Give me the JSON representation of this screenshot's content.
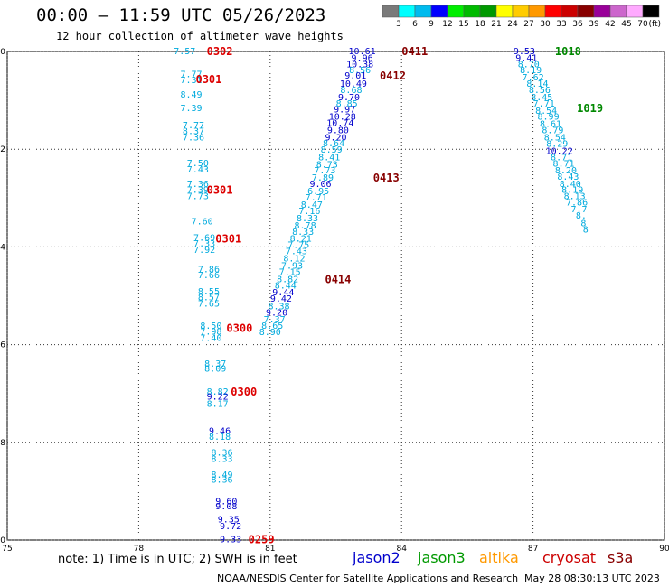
{
  "title": "00:00 – 11:59 UTC 05/26/2023",
  "subtitle": "12 hour collection of altimeter wave heights",
  "colorbar": {
    "unit": "(ft)",
    "ticks": [
      "3",
      "6",
      "9",
      "12",
      "15",
      "18",
      "21",
      "24",
      "27",
      "30",
      "33",
      "36",
      "39",
      "42",
      "45",
      "70"
    ],
    "colors": [
      "#7a7a7a",
      "#00ffff",
      "#00bbee",
      "#0000ff",
      "#00ee00",
      "#00bb00",
      "#009900",
      "#ffff00",
      "#ffcc00",
      "#ff9900",
      "#ff0000",
      "#cc0000",
      "#880000",
      "#990099",
      "#cc66cc",
      "#ffaaff",
      "#000000"
    ]
  },
  "axes": {
    "lon_labels": [
      "75",
      "78",
      "81",
      "84",
      "87",
      "90"
    ],
    "lat_labels": [
      "-20",
      "-22",
      "-24",
      "-26",
      "-28",
      "-30"
    ]
  },
  "chart_data": {
    "type": "map",
    "lon_range": [
      75,
      90
    ],
    "lat_range": [
      -30,
      -20
    ],
    "grid": true,
    "tracks": [
      {
        "satellite": "cryosat",
        "points": [
          {
            "lon": 79.05,
            "lat": -19.98,
            "text": "7.57",
            "color": "#00aadd"
          },
          {
            "lon": 79.2,
            "lat": -20.45,
            "text": "7.77",
            "color": "#00aadd"
          },
          {
            "lon": 79.2,
            "lat": -20.57,
            "text": "7.31",
            "color": "#00aadd"
          },
          {
            "lon": 79.2,
            "lat": -20.87,
            "text": "8.49",
            "color": "#00aadd"
          },
          {
            "lon": 79.2,
            "lat": -21.15,
            "text": "7.39",
            "color": "#00aadd"
          },
          {
            "lon": 79.25,
            "lat": -21.5,
            "text": "7.77",
            "color": "#00aadd"
          },
          {
            "lon": 79.25,
            "lat": -21.62,
            "text": "8.37",
            "color": "#00aadd"
          },
          {
            "lon": 79.25,
            "lat": -21.75,
            "text": "7.36",
            "color": "#00aadd"
          },
          {
            "lon": 79.35,
            "lat": -22.27,
            "text": "7.50",
            "color": "#00aadd"
          },
          {
            "lon": 79.35,
            "lat": -22.4,
            "text": "7.43",
            "color": "#00aadd"
          },
          {
            "lon": 79.35,
            "lat": -22.7,
            "text": "7.36",
            "color": "#00aadd"
          },
          {
            "lon": 79.35,
            "lat": -22.82,
            "text": "7.39",
            "color": "#00aadd"
          },
          {
            "lon": 79.35,
            "lat": -22.95,
            "text": "7.73",
            "color": "#00aadd"
          },
          {
            "lon": 79.45,
            "lat": -23.47,
            "text": "7.60",
            "color": "#00aadd"
          },
          {
            "lon": 79.5,
            "lat": -23.8,
            "text": "7.69",
            "color": "#00aadd"
          },
          {
            "lon": 79.5,
            "lat": -23.92,
            "text": "7.33",
            "color": "#00aadd"
          },
          {
            "lon": 79.5,
            "lat": -24.05,
            "text": "7.92",
            "color": "#00aadd"
          },
          {
            "lon": 79.6,
            "lat": -24.45,
            "text": "7.86",
            "color": "#00aadd"
          },
          {
            "lon": 79.6,
            "lat": -24.57,
            "text": "7.66",
            "color": "#00aadd"
          },
          {
            "lon": 79.6,
            "lat": -24.9,
            "text": "8.55",
            "color": "#00aadd"
          },
          {
            "lon": 79.6,
            "lat": -25.02,
            "text": "8.57",
            "color": "#00aadd"
          },
          {
            "lon": 79.6,
            "lat": -25.15,
            "text": "7.65",
            "color": "#00aadd"
          },
          {
            "lon": 79.65,
            "lat": -25.6,
            "text": "8.50",
            "color": "#00aadd"
          },
          {
            "lon": 79.65,
            "lat": -25.72,
            "text": "7.98",
            "color": "#00aadd"
          },
          {
            "lon": 79.65,
            "lat": -25.85,
            "text": "7.40",
            "color": "#00aadd"
          },
          {
            "lon": 79.75,
            "lat": -26.38,
            "text": "8.37",
            "color": "#00aadd"
          },
          {
            "lon": 79.75,
            "lat": -26.48,
            "text": "8.09",
            "color": "#00aadd"
          },
          {
            "lon": 79.8,
            "lat": -26.95,
            "text": "8.82",
            "color": "#00aadd"
          },
          {
            "lon": 79.8,
            "lat": -27.05,
            "text": "9.22",
            "color": "#0000cc"
          },
          {
            "lon": 79.8,
            "lat": -27.2,
            "text": "8.17",
            "color": "#00aadd"
          },
          {
            "lon": 79.85,
            "lat": -27.75,
            "text": "9.46",
            "color": "#0000cc"
          },
          {
            "lon": 79.85,
            "lat": -27.87,
            "text": "8.18",
            "color": "#00aadd"
          },
          {
            "lon": 79.9,
            "lat": -28.2,
            "text": "8.36",
            "color": "#00aadd"
          },
          {
            "lon": 79.9,
            "lat": -28.33,
            "text": "8.33",
            "color": "#00aadd"
          },
          {
            "lon": 79.9,
            "lat": -28.65,
            "text": "8.49",
            "color": "#00aadd"
          },
          {
            "lon": 79.9,
            "lat": -28.75,
            "text": "8.36",
            "color": "#00aadd"
          },
          {
            "lon": 80.0,
            "lat": -29.2,
            "text": "9.60",
            "color": "#0000cc"
          },
          {
            "lon": 80.0,
            "lat": -29.3,
            "text": "9.08",
            "color": "#0000cc"
          },
          {
            "lon": 80.05,
            "lat": -29.57,
            "text": "9.35",
            "color": "#0000cc"
          },
          {
            "lon": 80.1,
            "lat": -29.7,
            "text": "9.72",
            "color": "#0000cc"
          },
          {
            "lon": 80.1,
            "lat": -29.97,
            "text": "9.33",
            "color": "#0000cc"
          }
        ],
        "pass_labels": [
          {
            "lon": 79.85,
            "lat": -19.98,
            "text": "0302"
          },
          {
            "lon": 79.6,
            "lat": -20.55,
            "text": "0301"
          },
          {
            "lon": 79.85,
            "lat": -22.82,
            "text": "0301"
          },
          {
            "lon": 80.05,
            "lat": -23.82,
            "text": "0301"
          },
          {
            "lon": 80.3,
            "lat": -25.65,
            "text": "0300"
          },
          {
            "lon": 80.4,
            "lat": -26.95,
            "text": "0300"
          },
          {
            "lon": 80.8,
            "lat": -29.97,
            "text": "0259"
          }
        ]
      },
      {
        "satellite": "altika",
        "points": [
          {
            "lon": 83.1,
            "lat": -19.98,
            "text": "10.61",
            "color": "#0000cc"
          },
          {
            "lon": 83.1,
            "lat": -20.12,
            "text": "9.96",
            "color": "#0000cc"
          },
          {
            "lon": 83.05,
            "lat": -20.25,
            "text": "10.38",
            "color": "#0000cc"
          },
          {
            "lon": 83.05,
            "lat": -20.37,
            "text": "8.56",
            "color": "#00aadd"
          },
          {
            "lon": 82.95,
            "lat": -20.48,
            "text": "9.01",
            "color": "#0000cc"
          },
          {
            "lon": 82.9,
            "lat": -20.65,
            "text": "10.49",
            "color": "#0000cc"
          },
          {
            "lon": 82.85,
            "lat": -20.78,
            "text": "8.68",
            "color": "#00aadd"
          },
          {
            "lon": 82.8,
            "lat": -20.92,
            "text": "9.70",
            "color": "#0000cc"
          },
          {
            "lon": 82.75,
            "lat": -21.05,
            "text": "8.85",
            "color": "#00aadd"
          },
          {
            "lon": 82.7,
            "lat": -21.17,
            "text": "9.97",
            "color": "#0000cc"
          },
          {
            "lon": 82.65,
            "lat": -21.32,
            "text": "10.28",
            "color": "#0000cc"
          },
          {
            "lon": 82.6,
            "lat": -21.45,
            "text": "10.74",
            "color": "#0000cc"
          },
          {
            "lon": 82.55,
            "lat": -21.6,
            "text": "9.80",
            "color": "#0000cc"
          },
          {
            "lon": 82.5,
            "lat": -21.75,
            "text": "9.20",
            "color": "#0000cc"
          },
          {
            "lon": 82.45,
            "lat": -21.87,
            "text": "8.64",
            "color": "#00aadd"
          },
          {
            "lon": 82.4,
            "lat": -22.0,
            "text": "8.59",
            "color": "#00aadd"
          },
          {
            "lon": 82.35,
            "lat": -22.15,
            "text": "8.41",
            "color": "#00aadd"
          },
          {
            "lon": 82.3,
            "lat": -22.3,
            "text": "8.73",
            "color": "#00aadd"
          },
          {
            "lon": 82.25,
            "lat": -22.42,
            "text": "7.73",
            "color": "#00aadd"
          },
          {
            "lon": 82.2,
            "lat": -22.57,
            "text": "7.89",
            "color": "#00aadd"
          },
          {
            "lon": 82.15,
            "lat": -22.7,
            "text": "9.06",
            "color": "#0000cc"
          },
          {
            "lon": 82.1,
            "lat": -22.85,
            "text": "6.95",
            "color": "#00aadd"
          },
          {
            "lon": 82.05,
            "lat": -22.98,
            "text": "7.71",
            "color": "#00aadd"
          },
          {
            "lon": 81.95,
            "lat": -23.12,
            "text": "8.47",
            "color": "#00aadd"
          },
          {
            "lon": 81.9,
            "lat": -23.25,
            "text": "7.16",
            "color": "#00aadd"
          },
          {
            "lon": 81.85,
            "lat": -23.4,
            "text": "8.33",
            "color": "#00aadd"
          },
          {
            "lon": 81.8,
            "lat": -23.55,
            "text": "8.78",
            "color": "#00aadd"
          },
          {
            "lon": 81.75,
            "lat": -23.68,
            "text": "8.33",
            "color": "#00aadd"
          },
          {
            "lon": 81.7,
            "lat": -23.82,
            "text": "8.21",
            "color": "#00aadd"
          },
          {
            "lon": 81.65,
            "lat": -23.95,
            "text": "7.75",
            "color": "#00aadd"
          },
          {
            "lon": 81.6,
            "lat": -24.08,
            "text": "7.43",
            "color": "#00aadd"
          },
          {
            "lon": 81.55,
            "lat": -24.22,
            "text": "8.12",
            "color": "#00aadd"
          },
          {
            "lon": 81.5,
            "lat": -24.37,
            "text": "7.93",
            "color": "#00aadd"
          },
          {
            "lon": 81.45,
            "lat": -24.5,
            "text": "7.15",
            "color": "#00aadd"
          },
          {
            "lon": 81.4,
            "lat": -24.65,
            "text": "8.82",
            "color": "#00aadd"
          },
          {
            "lon": 81.35,
            "lat": -24.78,
            "text": "8.44",
            "color": "#00aadd"
          },
          {
            "lon": 81.3,
            "lat": -24.92,
            "text": "9.44",
            "color": "#0000cc"
          },
          {
            "lon": 81.25,
            "lat": -25.05,
            "text": "9.42",
            "color": "#0000cc"
          },
          {
            "lon": 81.2,
            "lat": -25.2,
            "text": "8.38",
            "color": "#00aadd"
          },
          {
            "lon": 81.15,
            "lat": -25.33,
            "text": "9.20",
            "color": "#0000cc"
          },
          {
            "lon": 81.1,
            "lat": -25.47,
            "text": "7.37",
            "color": "#00aadd"
          },
          {
            "lon": 81.05,
            "lat": -25.6,
            "text": "8.65",
            "color": "#00aadd"
          },
          {
            "lon": 81.0,
            "lat": -25.73,
            "text": "8.90",
            "color": "#00aadd"
          }
        ],
        "pass_labels": [
          {
            "lon": 84.3,
            "lat": -19.98,
            "text": "0411"
          },
          {
            "lon": 83.8,
            "lat": -20.48,
            "text": "0412"
          },
          {
            "lon": 83.65,
            "lat": -22.57,
            "text": "0413"
          },
          {
            "lon": 82.55,
            "lat": -24.65,
            "text": "0414"
          }
        ]
      },
      {
        "satellite": "jason3",
        "points": [
          {
            "lon": 86.8,
            "lat": -19.98,
            "text": "9.53",
            "color": "#0000cc"
          },
          {
            "lon": 86.85,
            "lat": -20.12,
            "text": "9.41",
            "color": "#0000cc"
          },
          {
            "lon": 86.9,
            "lat": -20.25,
            "text": "8.70",
            "color": "#00aadd"
          },
          {
            "lon": 86.95,
            "lat": -20.37,
            "text": "8.19",
            "color": "#00aadd"
          },
          {
            "lon": 87.0,
            "lat": -20.52,
            "text": "7.62",
            "color": "#00aadd"
          },
          {
            "lon": 87.1,
            "lat": -20.65,
            "text": "8.14",
            "color": "#00aadd"
          },
          {
            "lon": 87.15,
            "lat": -20.78,
            "text": "8.56",
            "color": "#00aadd"
          },
          {
            "lon": 87.2,
            "lat": -20.92,
            "text": "8.45",
            "color": "#00aadd"
          },
          {
            "lon": 87.25,
            "lat": -21.05,
            "text": "7.71",
            "color": "#00aadd"
          },
          {
            "lon": 87.3,
            "lat": -21.2,
            "text": "8.54",
            "color": "#00aadd"
          },
          {
            "lon": 87.35,
            "lat": -21.32,
            "text": "8.99",
            "color": "#00aadd"
          },
          {
            "lon": 87.4,
            "lat": -21.47,
            "text": "8.61",
            "color": "#00aadd"
          },
          {
            "lon": 87.45,
            "lat": -21.6,
            "text": "8.79",
            "color": "#00aadd"
          },
          {
            "lon": 87.5,
            "lat": -21.75,
            "text": "8.54",
            "color": "#00aadd"
          },
          {
            "lon": 87.55,
            "lat": -21.88,
            "text": "8.29",
            "color": "#00aadd"
          },
          {
            "lon": 87.6,
            "lat": -22.02,
            "text": "10.22",
            "color": "#0000cc"
          },
          {
            "lon": 87.65,
            "lat": -22.15,
            "text": "8.71",
            "color": "#00aadd"
          },
          {
            "lon": 87.7,
            "lat": -22.28,
            "text": "8.71",
            "color": "#00aadd"
          },
          {
            "lon": 87.75,
            "lat": -22.42,
            "text": "8.20",
            "color": "#00aadd"
          },
          {
            "lon": 87.8,
            "lat": -22.55,
            "text": "8.43",
            "color": "#00aadd"
          },
          {
            "lon": 87.85,
            "lat": -22.7,
            "text": "8.40",
            "color": "#00aadd"
          },
          {
            "lon": 87.9,
            "lat": -22.82,
            "text": "8.19",
            "color": "#00aadd"
          },
          {
            "lon": 87.95,
            "lat": -22.95,
            "text": "8.13",
            "color": "#00aadd"
          },
          {
            "lon": 88.0,
            "lat": -23.08,
            "text": "7.86",
            "color": "#00aadd"
          },
          {
            "lon": 88.05,
            "lat": -23.22,
            "text": "7.7",
            "color": "#00aadd"
          },
          {
            "lon": 88.1,
            "lat": -23.35,
            "text": "8.",
            "color": "#00aadd"
          },
          {
            "lon": 88.15,
            "lat": -23.5,
            "text": "8",
            "color": "#00aadd"
          },
          {
            "lon": 88.2,
            "lat": -23.63,
            "text": "8",
            "color": "#00aadd"
          }
        ],
        "pass_labels": [
          {
            "lon": 87.8,
            "lat": -19.98,
            "text": "1018"
          },
          {
            "lon": 88.3,
            "lat": -21.15,
            "text": "1019"
          }
        ]
      }
    ]
  },
  "footer": {
    "note": "note:  1) Time is in UTC;  2) SWH is in feet",
    "legend": [
      {
        "name": "jason2",
        "color": "#0000cc"
      },
      {
        "name": "jason3",
        "color": "#009900"
      },
      {
        "name": "altika",
        "color": "#ff9900"
      },
      {
        "name": "cryosat",
        "color": "#cc0000"
      },
      {
        "name": "s3a",
        "color": "#880000"
      }
    ],
    "credit": "NOAA/NESDIS Center for Satellite Applications and Research",
    "timestamp": "May 28 08:30:13 UTC 2023"
  }
}
